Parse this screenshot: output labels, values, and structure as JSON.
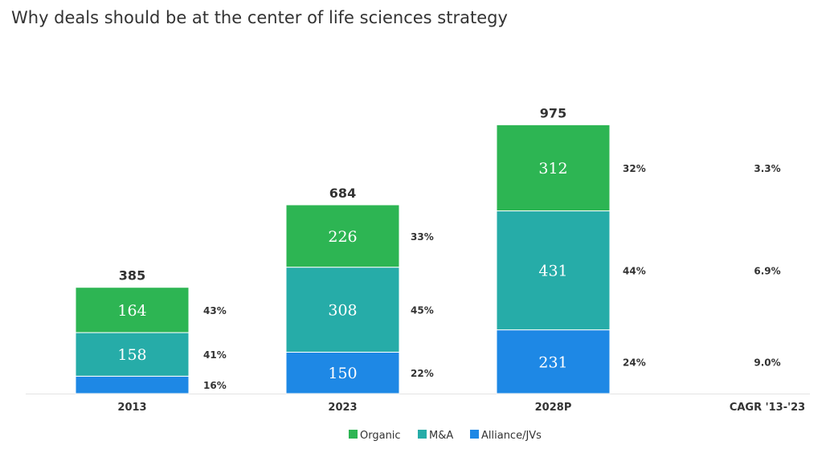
{
  "chart_data": {
    "type": "bar",
    "stacked": true,
    "title": "Why deals should be at the center of life sciences strategy",
    "categories": [
      "2013",
      "2023",
      "2028P"
    ],
    "totals": [
      "385",
      "684",
      "975"
    ],
    "series": [
      {
        "name": "Alliance/JVs",
        "color": "#1e88e5",
        "values": [
          63,
          150,
          231
        ],
        "labels": [
          "",
          "150",
          "231"
        ],
        "shares": [
          "16%",
          "22%",
          "24%"
        ],
        "cagr": "9.0%"
      },
      {
        "name": "M&A",
        "color": "#26aca8",
        "values": [
          158,
          308,
          431
        ],
        "labels": [
          "158",
          "308",
          "431"
        ],
        "shares": [
          "41%",
          "45%",
          "44%"
        ],
        "cagr": "6.9%"
      },
      {
        "name": "Organic",
        "color": "#2db553",
        "values": [
          164,
          226,
          312
        ],
        "labels": [
          "164",
          "226",
          "312"
        ],
        "shares": [
          "43%",
          "33%",
          "32%"
        ],
        "cagr": "3.3%"
      }
    ],
    "cagr_header": "CAGR '13-'23",
    "legend_order": [
      "Organic",
      "M&A",
      "Alliance/JVs"
    ],
    "legend_position": "bottom-center",
    "grid": false
  }
}
